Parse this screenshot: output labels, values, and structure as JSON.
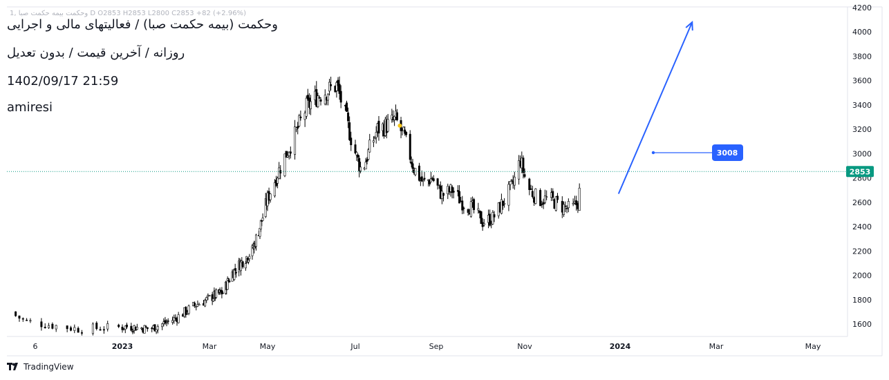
{
  "header": {
    "ohlc_line": "1, وحکمت بیمه حکمت صبا D  O2853  H2853  L2800  C2853  +82 (+2.96%)",
    "title": "وحکمت (بیمه حکمت صبا) / فعالیتهای مالی و اجرایی",
    "subtitle": "روزانه / آخرین قیمت / بدون تعدیل",
    "datetime": "1402/09/17 21:59",
    "author": "amiresi"
  },
  "footer": {
    "brand": "TradingView",
    "logo_icon": "tradingview-logo-icon"
  },
  "price_labels": {
    "last_price": "2853",
    "last_price_color": "#089981",
    "target_value": "3008",
    "target_color": "#2962ff"
  },
  "chart_data": {
    "type": "candlestick",
    "title": "وحکمت (بیمه حکمت صبا) / فعالیتهای مالی و اجرایی",
    "xlabel": "",
    "ylabel": "",
    "ylim": [
      1500,
      4200
    ],
    "x_ticks": [
      "6",
      "2023",
      "Mar",
      "May",
      "Jul",
      "Sep",
      "Nov",
      "2024",
      "Mar",
      "May"
    ],
    "y_ticks": [
      1600,
      1800,
      2000,
      2200,
      2400,
      2600,
      2800,
      3000,
      3200,
      3400,
      3600,
      3800,
      4000,
      4200
    ],
    "grid": false,
    "last_close": 2853,
    "last_change": "+82 (+2.96%)",
    "close_path": [
      [
        "2022-12-01",
        1700
      ],
      [
        "2022-12-06",
        1620
      ],
      [
        "2022-12-20",
        1560
      ],
      [
        "2023-01-05",
        1580
      ],
      [
        "2023-01-20",
        1560
      ],
      [
        "2023-02-05",
        1640
      ],
      [
        "2023-02-20",
        1760
      ],
      [
        "2023-03-05",
        1830
      ],
      [
        "2023-03-15",
        1860
      ],
      [
        "2023-03-25",
        2020
      ],
      [
        "2023-04-05",
        2120
      ],
      [
        "2023-04-15",
        2200
      ],
      [
        "2023-04-25",
        2450
      ],
      [
        "2023-05-05",
        2750
      ],
      [
        "2023-05-12",
        2950
      ],
      [
        "2023-05-20",
        3150
      ],
      [
        "2023-05-28",
        3380
      ],
      [
        "2023-06-05",
        3480
      ],
      [
        "2023-06-12",
        3520
      ],
      [
        "2023-06-18",
        3560
      ],
      [
        "2023-06-23",
        3360
      ],
      [
        "2023-06-30",
        3040
      ],
      [
        "2023-07-06",
        2850
      ],
      [
        "2023-07-12",
        3040
      ],
      [
        "2023-07-18",
        3200
      ],
      [
        "2023-07-25",
        3230
      ],
      [
        "2023-08-01",
        3280
      ],
      [
        "2023-08-08",
        3120
      ],
      [
        "2023-08-15",
        2880
      ],
      [
        "2023-08-22",
        2760
      ],
      [
        "2023-08-29",
        2800
      ],
      [
        "2023-09-05",
        2660
      ],
      [
        "2023-09-12",
        2700
      ],
      [
        "2023-09-19",
        2600
      ],
      [
        "2023-09-26",
        2550
      ],
      [
        "2023-10-03",
        2440
      ],
      [
        "2023-10-10",
        2470
      ],
      [
        "2023-10-17",
        2600
      ],
      [
        "2023-10-24",
        2750
      ],
      [
        "2023-10-29",
        2950
      ],
      [
        "2023-11-03",
        2720
      ],
      [
        "2023-11-10",
        2620
      ],
      [
        "2023-11-17",
        2630
      ],
      [
        "2023-11-24",
        2570
      ],
      [
        "2023-12-01",
        2540
      ],
      [
        "2023-12-05",
        2600
      ],
      [
        "2023-12-08",
        2853
      ]
    ],
    "annotations": [
      {
        "type": "horizontal_ray",
        "value": 3008,
        "label": "3008"
      },
      {
        "type": "arrow",
        "from": [
          "2023-12-31",
          2670
        ],
        "to": [
          "2024-02-15",
          4080
        ]
      },
      {
        "type": "marker",
        "at": [
          "2023-08-02",
          3230
        ],
        "color": "#f5c518"
      },
      {
        "type": "horizontal_dotted_line",
        "value": 2853
      }
    ]
  }
}
